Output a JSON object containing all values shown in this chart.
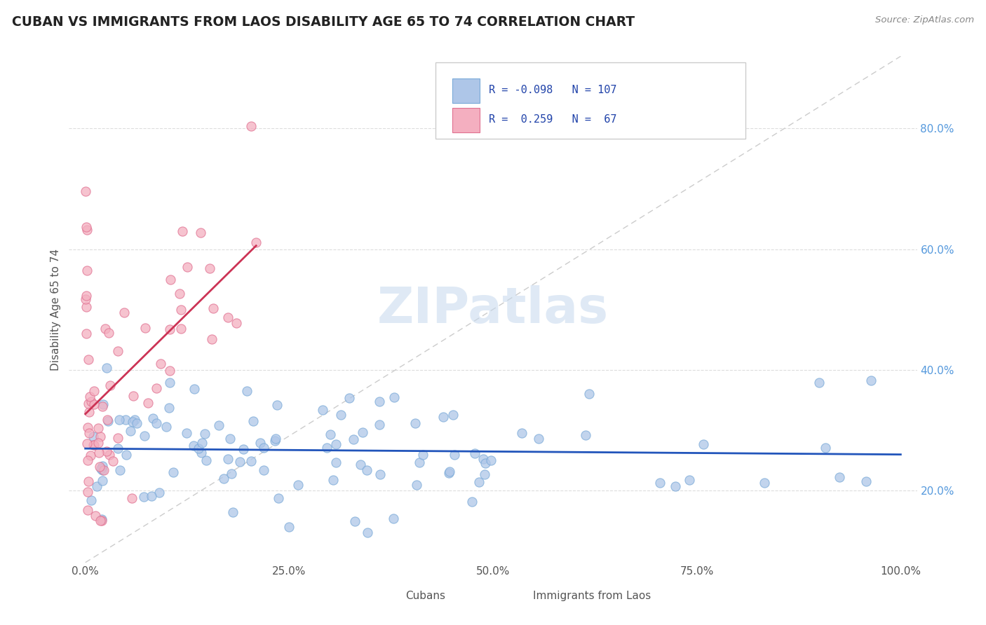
{
  "title": "CUBAN VS IMMIGRANTS FROM LAOS DISABILITY AGE 65 TO 74 CORRELATION CHART",
  "source": "Source: ZipAtlas.com",
  "ylabel": "Disability Age 65 to 74",
  "xlim": [
    -0.02,
    1.02
  ],
  "ylim": [
    0.08,
    0.92
  ],
  "xticks": [
    0.0,
    0.25,
    0.5,
    0.75,
    1.0
  ],
  "xtick_labels": [
    "0.0%",
    "25.0%",
    "50.0%",
    "75.0%",
    "100.0%"
  ],
  "yticks": [
    0.2,
    0.4,
    0.6,
    0.8
  ],
  "ytick_labels": [
    "20.0%",
    "40.0%",
    "60.0%",
    "80.0%"
  ],
  "cubans_R": -0.098,
  "cubans_N": 107,
  "laos_R": 0.259,
  "laos_N": 67,
  "cubans_color": "#aec6e8",
  "laos_color": "#f4afc0",
  "cubans_edge_color": "#7aaad8",
  "laos_edge_color": "#e07090",
  "cubans_line_color": "#2255bb",
  "laos_line_color": "#cc3355",
  "diag_color": "#cccccc",
  "watermark_color": "#c5d8ed",
  "background_color": "#ffffff",
  "grid_color": "#dddddd",
  "title_color": "#222222",
  "ylabel_color": "#555555",
  "ytick_color": "#5599dd",
  "xtick_color": "#555555",
  "source_color": "#888888",
  "legend_text_color": "#2244aa",
  "legend_border_color": "#cccccc",
  "bottom_legend_text_color": "#555555"
}
